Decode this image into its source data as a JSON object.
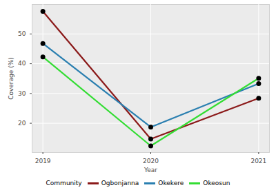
{
  "chart_data": {
    "type": "line",
    "x": [
      2019,
      2020,
      2021
    ],
    "series": [
      {
        "name": "Ogbonjanna",
        "color": "#8b1a1a",
        "values": [
          57.6,
          14.7,
          28.4
        ]
      },
      {
        "name": "Okekere",
        "color": "#2a7fb0",
        "values": [
          46.8,
          18.7,
          33.3
        ]
      },
      {
        "name": "Okeosun",
        "color": "#33dd33",
        "values": [
          42.3,
          12.4,
          35.1
        ]
      }
    ],
    "x_label": "Year",
    "y_label": "Coverage (%)",
    "xlim": [
      2018.9,
      2021.1
    ],
    "xticks": [
      2019,
      2020,
      2021
    ],
    "ylim": [
      10.2,
      59.9
    ],
    "yticks": [
      20,
      30,
      40,
      50
    ],
    "grid": true,
    "legend": "bottom",
    "legend_title": "Community",
    "marker": "circle"
  }
}
